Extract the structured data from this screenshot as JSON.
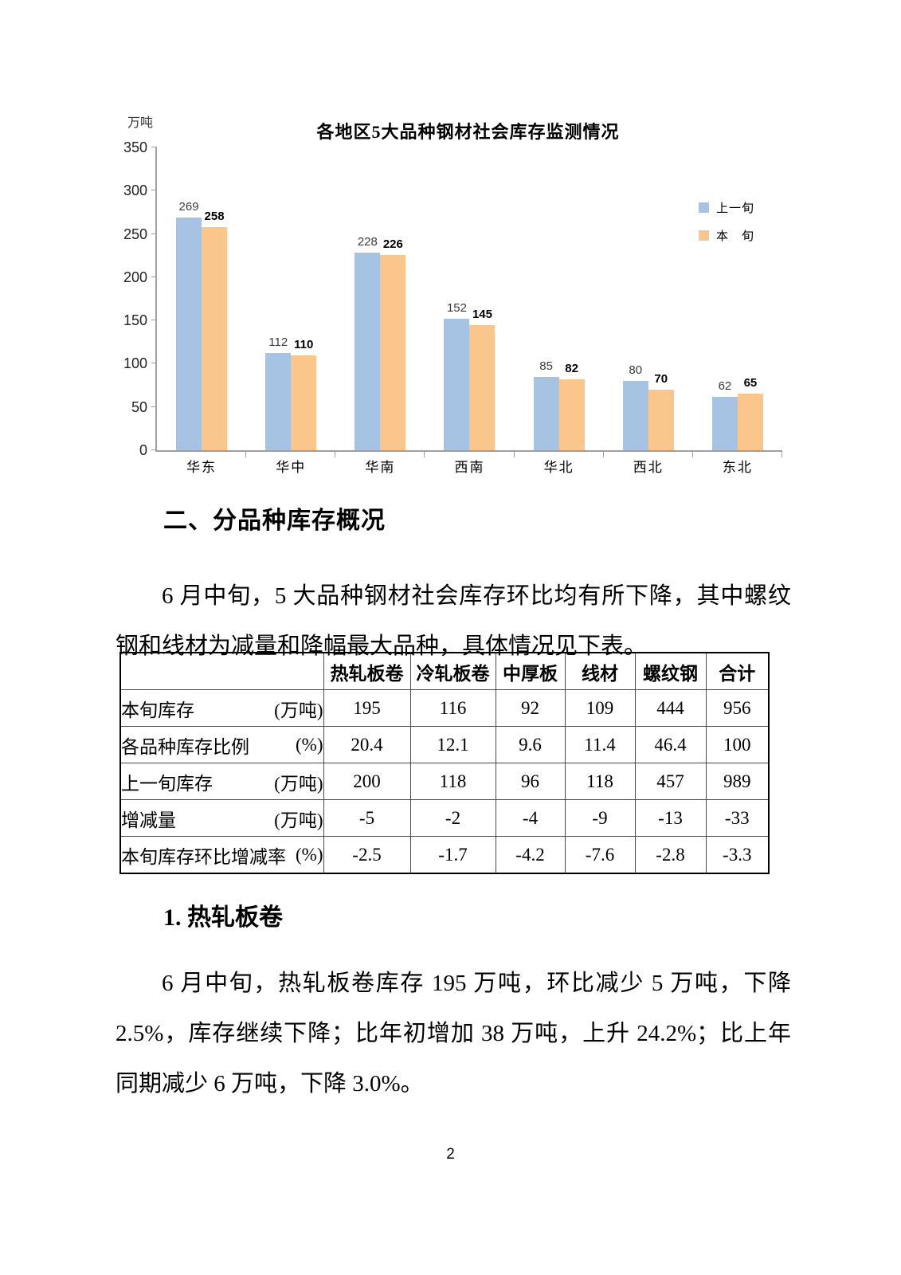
{
  "page_number": "2",
  "chart_data": {
    "type": "bar",
    "title": "各地区5大品种钢材社会库存监测情况",
    "y_axis_label": "万吨",
    "categories": [
      "华东",
      "华中",
      "华南",
      "西南",
      "华北",
      "西北",
      "东北"
    ],
    "series": [
      {
        "name": "上一旬",
        "color": "#a6c3e4",
        "values": [
          269,
          112,
          228,
          152,
          85,
          80,
          62
        ]
      },
      {
        "name": "本　旬",
        "color": "#fac68c",
        "values": [
          258,
          110,
          226,
          145,
          82,
          70,
          65
        ]
      }
    ],
    "ylim": [
      0,
      350
    ],
    "y_tick_step": 50,
    "grid": false,
    "legend_position": "right"
  },
  "section": {
    "heading": "二、分品种库存概况",
    "paragraph": "6 月中旬，5 大品种钢材社会库存环比均有所下降，其中螺纹钢和线材为减量和降幅最大品种，具体情况见下表。"
  },
  "table": {
    "columns": [
      "",
      "热轧板卷",
      "冷轧板卷",
      "中厚板",
      "线材",
      "螺纹钢",
      "合计"
    ],
    "rows": [
      {
        "label": "本旬库存",
        "unit": "(万吨)",
        "values": [
          "195",
          "116",
          "92",
          "109",
          "444",
          "956"
        ]
      },
      {
        "label": "各品种库存比例",
        "unit": "(%)",
        "values": [
          "20.4",
          "12.1",
          "9.6",
          "11.4",
          "46.4",
          "100"
        ]
      },
      {
        "label": "上一旬库存",
        "unit": "(万吨)",
        "values": [
          "200",
          "118",
          "96",
          "118",
          "457",
          "989"
        ]
      },
      {
        "label": "增减量",
        "unit": "(万吨)",
        "values": [
          "-5",
          "-2",
          "-4",
          "-9",
          "-13",
          "-33"
        ]
      },
      {
        "label": "本旬库存环比增减率",
        "unit": "(%)",
        "values": [
          "-2.5",
          "-1.7",
          "-4.2",
          "-7.6",
          "-2.8",
          "-3.3"
        ]
      }
    ]
  },
  "subsection": {
    "heading": "1. 热轧板卷",
    "paragraph": "6 月中旬，热轧板卷库存 195 万吨，环比减少 5 万吨，下降 2.5%，库存继续下降；比年初增加 38 万吨，上升 24.2%；比上年同期减少 6 万吨，下降 3.0%。"
  }
}
